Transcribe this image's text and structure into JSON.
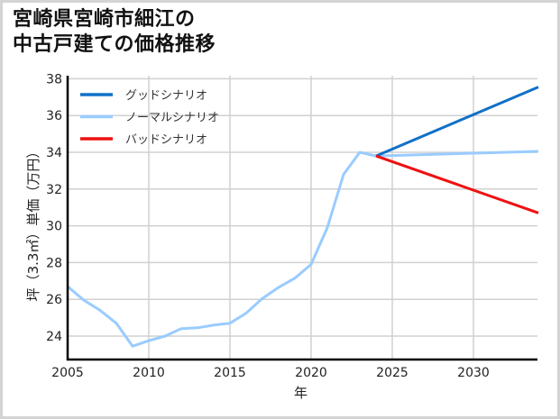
{
  "title": "宮崎県宮崎市細江の\n中古戸建ての価格推移",
  "colors": {
    "good": "#1070c8",
    "normal": "#99ccff",
    "bad": "#ee1111",
    "grid": "#d0d0d0",
    "axis": "#000000",
    "border": "#d4d4d4"
  },
  "chart_data": {
    "type": "line",
    "title": "宮崎県宮崎市細江の中古戸建ての価格推移",
    "xlabel": "年",
    "ylabel": "坪（3.3㎡）単価（万円）",
    "xlim": [
      2005,
      2034
    ],
    "ylim": [
      22.7,
      38.1
    ],
    "xticks": [
      2005,
      2010,
      2015,
      2020,
      2025,
      2030
    ],
    "yticks": [
      24,
      26,
      28,
      30,
      32,
      34,
      36,
      38
    ],
    "grid": true,
    "legend_position": "upper left",
    "series": [
      {
        "name": "グッドシナリオ",
        "key": "good",
        "x": [
          2024,
          2034
        ],
        "y": [
          33.8,
          37.55
        ]
      },
      {
        "name": "ノーマルシナリオ",
        "key": "normal",
        "x": [
          2005,
          2006,
          2007,
          2008,
          2009,
          2010,
          2011,
          2012,
          2013,
          2014,
          2015,
          2016,
          2017,
          2018,
          2019,
          2020,
          2021,
          2022,
          2023,
          2024,
          2034
        ],
        "y": [
          26.7,
          25.95,
          25.4,
          24.7,
          23.45,
          23.75,
          24.0,
          24.4,
          24.45,
          24.6,
          24.7,
          25.25,
          26.05,
          26.65,
          27.15,
          27.9,
          29.9,
          32.8,
          34.0,
          33.8,
          34.05
        ]
      },
      {
        "name": "バッドシナリオ",
        "key": "bad",
        "x": [
          2024,
          2034
        ],
        "y": [
          33.8,
          30.7
        ]
      }
    ]
  }
}
